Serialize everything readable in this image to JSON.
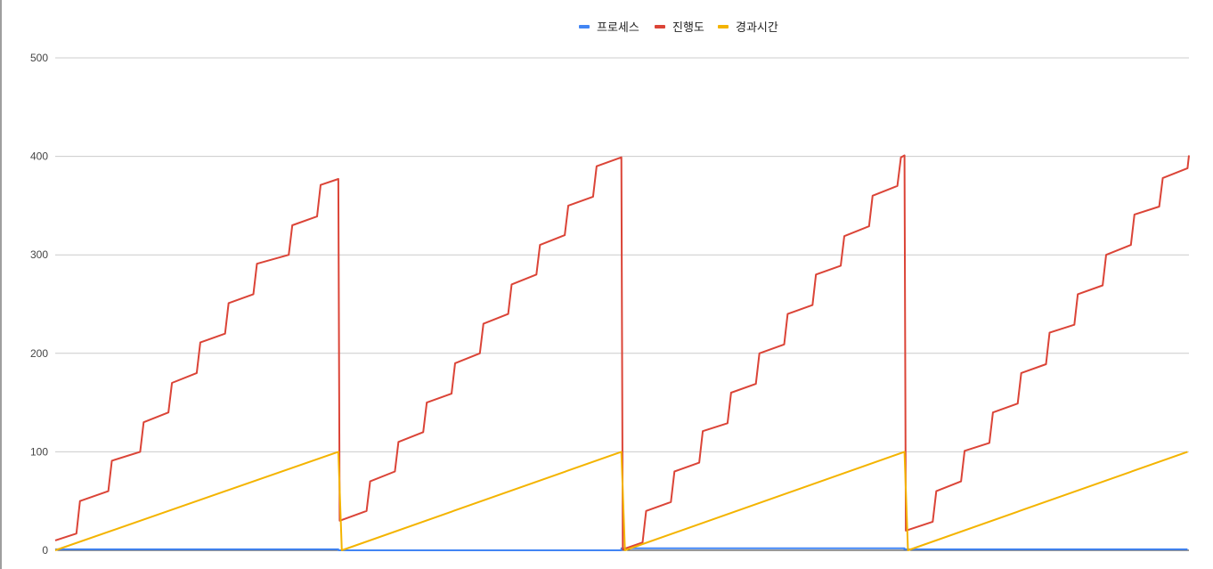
{
  "chart_data": {
    "type": "line",
    "ylim": [
      0,
      500
    ],
    "yticks": [
      "0",
      "100",
      "200",
      "300",
      "400",
      "500"
    ],
    "grid": true,
    "legend_position": "top-center",
    "series": [
      {
        "name": "프로세스",
        "color": "#4285f4",
        "points": [
          [
            0,
            1
          ],
          [
            4,
            1
          ],
          [
            4,
            0
          ],
          [
            8,
            0
          ],
          [
            8,
            2
          ],
          [
            12,
            2
          ],
          [
            12,
            1
          ],
          [
            16,
            1
          ]
        ]
      },
      {
        "name": "진행도",
        "color": "#db4437",
        "points": [
          [
            0,
            10
          ],
          [
            0.3,
            17
          ],
          [
            0.35,
            50
          ],
          [
            0.75,
            60
          ],
          [
            0.8,
            91
          ],
          [
            1.2,
            100
          ],
          [
            1.25,
            130
          ],
          [
            1.6,
            140
          ],
          [
            1.65,
            170
          ],
          [
            2.0,
            180
          ],
          [
            2.05,
            211
          ],
          [
            2.4,
            220
          ],
          [
            2.45,
            251
          ],
          [
            2.8,
            260
          ],
          [
            2.85,
            291
          ],
          [
            3.3,
            300
          ],
          [
            3.35,
            330
          ],
          [
            3.7,
            339
          ],
          [
            3.75,
            371
          ],
          [
            4.0,
            377
          ],
          [
            4.02,
            30
          ],
          [
            4.4,
            40
          ],
          [
            4.45,
            70
          ],
          [
            4.8,
            80
          ],
          [
            4.85,
            110
          ],
          [
            5.2,
            120
          ],
          [
            5.25,
            150
          ],
          [
            5.6,
            159
          ],
          [
            5.65,
            190
          ],
          [
            6.0,
            200
          ],
          [
            6.05,
            230
          ],
          [
            6.4,
            240
          ],
          [
            6.45,
            270
          ],
          [
            6.8,
            280
          ],
          [
            6.85,
            310
          ],
          [
            7.2,
            320
          ],
          [
            7.25,
            350
          ],
          [
            7.6,
            359
          ],
          [
            7.65,
            390
          ],
          [
            8.0,
            399
          ],
          [
            8.02,
            1
          ],
          [
            8.3,
            8
          ],
          [
            8.35,
            40
          ],
          [
            8.7,
            49
          ],
          [
            8.75,
            80
          ],
          [
            9.1,
            89
          ],
          [
            9.15,
            121
          ],
          [
            9.5,
            129
          ],
          [
            9.55,
            160
          ],
          [
            9.9,
            169
          ],
          [
            9.95,
            200
          ],
          [
            10.3,
            209
          ],
          [
            10.35,
            240
          ],
          [
            10.7,
            249
          ],
          [
            10.75,
            280
          ],
          [
            11.1,
            289
          ],
          [
            11.15,
            319
          ],
          [
            11.5,
            329
          ],
          [
            11.55,
            360
          ],
          [
            11.9,
            370
          ],
          [
            11.95,
            399
          ],
          [
            12.0,
            401
          ],
          [
            12.02,
            20
          ],
          [
            12.4,
            29
          ],
          [
            12.45,
            60
          ],
          [
            12.8,
            70
          ],
          [
            12.85,
            101
          ],
          [
            13.2,
            109
          ],
          [
            13.25,
            140
          ],
          [
            13.6,
            149
          ],
          [
            13.65,
            180
          ],
          [
            14.0,
            189
          ],
          [
            14.05,
            221
          ],
          [
            14.4,
            229
          ],
          [
            14.45,
            260
          ],
          [
            14.8,
            269
          ],
          [
            14.85,
            300
          ],
          [
            15.2,
            310
          ],
          [
            15.25,
            341
          ],
          [
            15.6,
            349
          ],
          [
            15.65,
            378
          ],
          [
            16.0,
            388
          ],
          [
            16.02,
            401
          ]
        ]
      },
      {
        "name": "경과시간",
        "color": "#f4b400",
        "points": [
          [
            0,
            0
          ],
          [
            4,
            100
          ],
          [
            4.05,
            0
          ],
          [
            8,
            100
          ],
          [
            8.05,
            0
          ],
          [
            12,
            100
          ],
          [
            12.05,
            0
          ],
          [
            16,
            100
          ]
        ]
      }
    ]
  }
}
